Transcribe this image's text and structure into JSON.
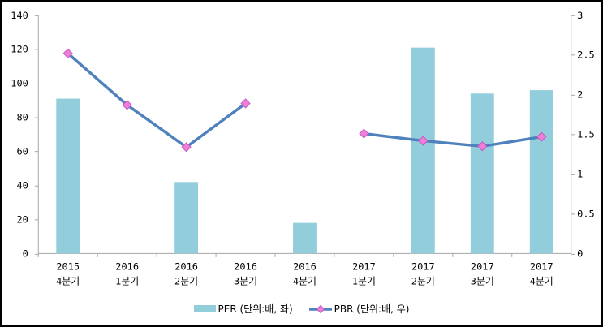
{
  "chart_data": {
    "type": "bar+line",
    "categories": [
      [
        "2015",
        "4분기"
      ],
      [
        "2016",
        "1분기"
      ],
      [
        "2016",
        "2분기"
      ],
      [
        "2016",
        "3분기"
      ],
      [
        "2016",
        "4분기"
      ],
      [
        "2017",
        "1분기"
      ],
      [
        "2017",
        "2분기"
      ],
      [
        "2017",
        "3분기"
      ],
      [
        "2017",
        "4분기"
      ]
    ],
    "series": [
      {
        "name": "PER (단위:배, 좌)",
        "type": "bar",
        "axis": "left",
        "color": "#92CDDC",
        "values": [
          91,
          null,
          42,
          null,
          18,
          null,
          121,
          94,
          96
        ]
      },
      {
        "name": "PBR (단위:배, 우)",
        "type": "line",
        "axis": "right",
        "color": "#4F81BD",
        "marker": "diamond",
        "marker_color": "#EF7ED9",
        "marker_border": "#C55AC4",
        "values": [
          2.52,
          1.87,
          1.34,
          1.89,
          null,
          1.51,
          1.42,
          1.35,
          1.47
        ]
      }
    ],
    "left_axis": {
      "min": 0,
      "max": 140,
      "tick_step": 20,
      "ticks": [
        0,
        20,
        40,
        60,
        80,
        100,
        120,
        140
      ]
    },
    "right_axis": {
      "min": 0,
      "max": 3,
      "tick_step": 0.5,
      "ticks": [
        0,
        0.5,
        1,
        1.5,
        2,
        2.5,
        3
      ]
    },
    "grid": false,
    "legend_position": "bottom-center",
    "axis_color": "#A6A6A6",
    "text_color": "#000000",
    "background": "#FFFFFF",
    "border_color": "#000000"
  }
}
